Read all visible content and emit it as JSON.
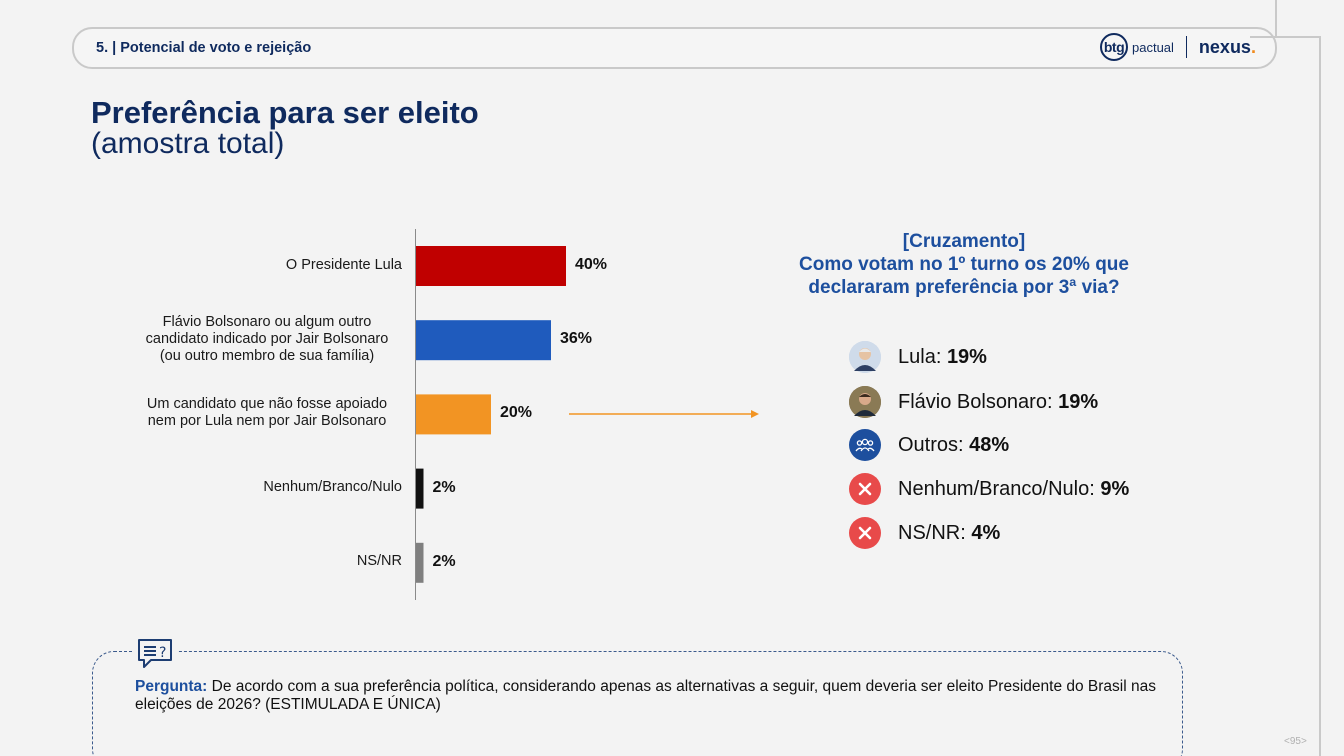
{
  "header": {
    "section_label": "5. | Potencial de voto e rejeição",
    "logo_btg_mark": "btg",
    "logo_btg_text": "pactual",
    "logo_nexus": "nexus",
    "logo_nexus_dot": "."
  },
  "title": "Preferência para ser eleito",
  "subtitle": "(amostra total)",
  "chart_data": {
    "type": "bar",
    "orientation": "horizontal",
    "categories": [
      "O Presidente Lula",
      "Flávio Bolsonaro ou algum outro candidato indicado por Jair Bolsonaro (ou outro membro de sua família)",
      "Um candidato que não fosse apoiado nem por Lula nem por Jair Bolsonaro",
      "Nenhum/Branco/Nulo",
      "NS/NR"
    ],
    "category_lines": [
      [
        "O Presidente Lula"
      ],
      [
        "Flávio Bolsonaro ou algum outro",
        "candidato indicado por Jair Bolsonaro",
        "(ou outro membro de sua família)"
      ],
      [
        "Um candidato que não fosse apoiado",
        "nem por Lula nem por Jair Bolsonaro"
      ],
      [
        "Nenhum/Branco/Nulo"
      ],
      [
        "NS/NR"
      ]
    ],
    "values": [
      40,
      36,
      20,
      2,
      2
    ],
    "value_labels": [
      "40%",
      "36%",
      "20%",
      "2%",
      "2%"
    ],
    "colors": [
      "#c00000",
      "#1f5bbd",
      "#f29423",
      "#111111",
      "#7f7f7f"
    ],
    "xlim": [
      0,
      40
    ],
    "grid": false,
    "legend": "none"
  },
  "cross": {
    "title_line1": "[Cruzamento]",
    "title_line2": "Como votam no 1º turno os 20% que",
    "title_line3": "declararam preferência por 3ª via?",
    "items": [
      {
        "label": "Lula: ",
        "value": "19%",
        "icon": "lula-photo-icon",
        "color": "#9fb6d6"
      },
      {
        "label": "Flávio Bolsonaro: ",
        "value": "19%",
        "icon": "flavio-photo-icon",
        "color": "#7a6a4a"
      },
      {
        "label": "Outros: ",
        "value": "48%",
        "icon": "people-icon",
        "color": "#1d4f9e"
      },
      {
        "label": "Nenhum/Branco/Nulo: ",
        "value": "9%",
        "icon": "x-circle-icon",
        "color": "#e84a4a"
      },
      {
        "label": "NS/NR: ",
        "value": "4%",
        "icon": "x-circle-icon",
        "color": "#e84a4a"
      }
    ]
  },
  "question": {
    "lead": "Pergunta:",
    "text": " De acordo com a sua preferência política, considerando apenas as alternativas a seguir, quem deveria ser eleito Presidente do Brasil nas eleições de 2026? (ESTIMULADA E ÚNICA)"
  },
  "page_number": "<95>"
}
